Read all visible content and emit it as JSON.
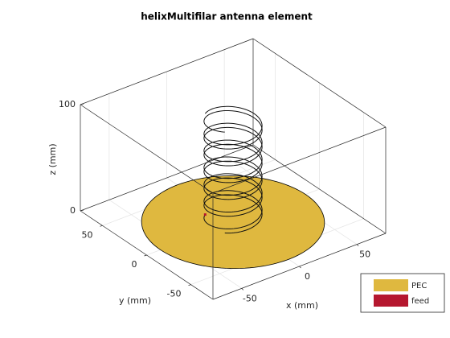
{
  "chart_data": {
    "type": "antenna3d",
    "title": "helixMultifilar antenna element",
    "xlabel": "x (mm)",
    "ylabel": "y (mm)",
    "zlabel": "z (mm)",
    "xlim": [
      -75,
      75
    ],
    "ylim": [
      -75,
      75
    ],
    "zlim": [
      0,
      100
    ],
    "xticks": [
      -50,
      0,
      50
    ],
    "yticks": [
      -50,
      0,
      50
    ],
    "zticks": [
      0,
      100
    ],
    "grid": true,
    "legend": [
      {
        "name": "PEC",
        "color": "#dfb83f"
      },
      {
        "name": "feed",
        "color": "#b5172f"
      }
    ]
  }
}
